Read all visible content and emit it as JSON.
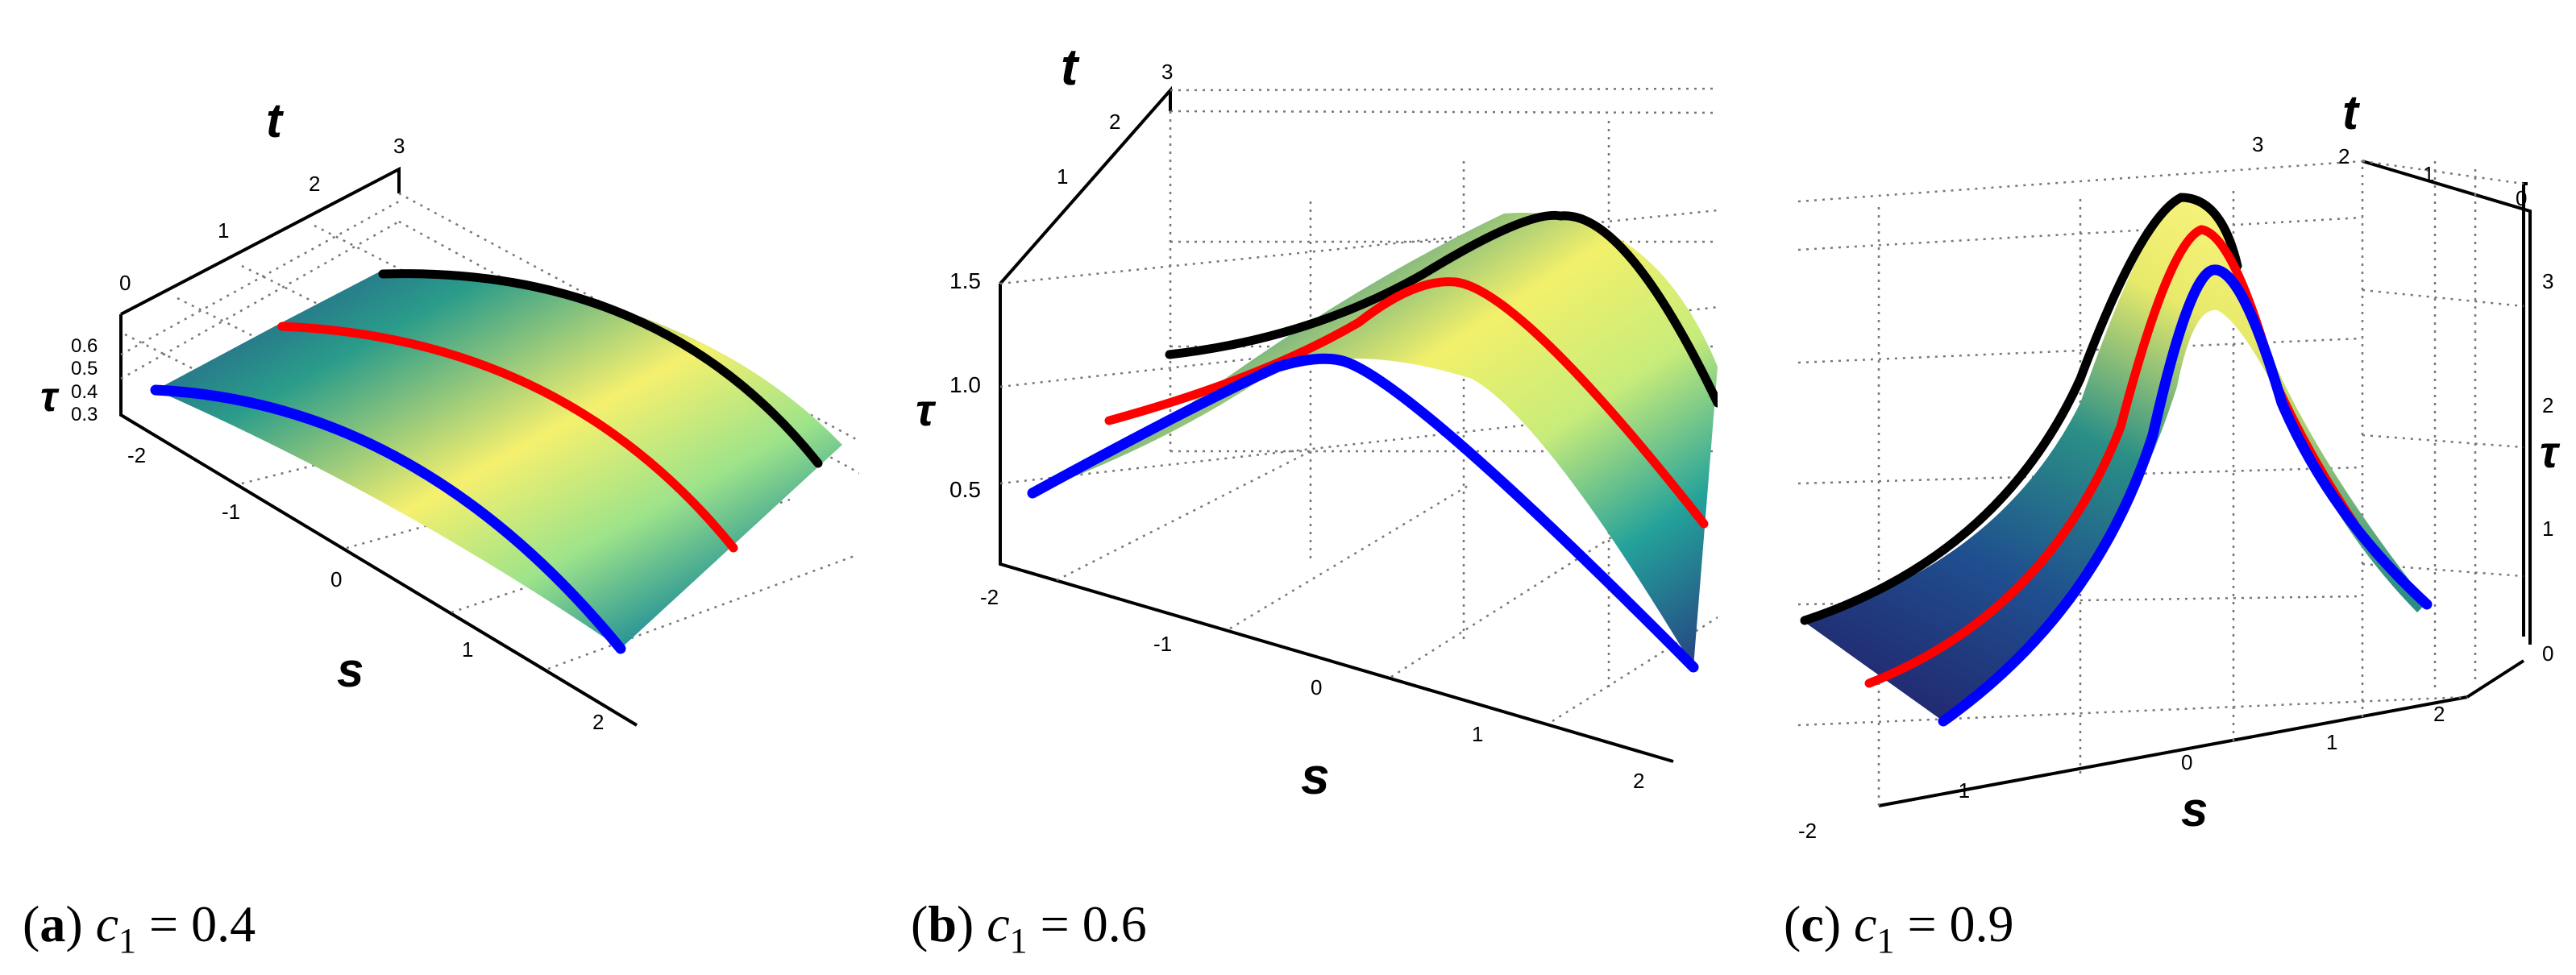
{
  "figure": {
    "panels": [
      {
        "id": "a",
        "caption": {
          "tag": "a",
          "var": "c",
          "sub": "1",
          "rel": " = ",
          "value": "0.4"
        },
        "chart_data": {
          "type": "surface3d",
          "c1": 0.4,
          "axes": {
            "x": {
              "label": "s",
              "ticks": [
                "-2",
                "-1",
                "0",
                "1",
                "2"
              ]
            },
            "y": {
              "label": "t",
              "ticks": [
                "0",
                "1",
                "2",
                "3"
              ]
            },
            "z": {
              "label": "τ",
              "ticks": [
                "0.3",
                "0.4",
                "0.5",
                "0.6"
              ]
            }
          },
          "curve_colors": [
            "#000000",
            "#ff0000",
            "#0000ff"
          ]
        }
      },
      {
        "id": "b",
        "caption": {
          "tag": "b",
          "var": "c",
          "sub": "1",
          "rel": " = ",
          "value": "0.6"
        },
        "chart_data": {
          "type": "surface3d",
          "c1": 0.6,
          "axes": {
            "x": {
              "label": "s",
              "ticks": [
                "-2",
                "-1",
                "0",
                "1",
                "2"
              ]
            },
            "y": {
              "label": "t",
              "ticks": [
                "1",
                "2",
                "3"
              ]
            },
            "z": {
              "label": "τ",
              "ticks": [
                "0.5",
                "1.0",
                "1.5"
              ]
            }
          },
          "curve_colors": [
            "#000000",
            "#ff0000",
            "#0000ff"
          ]
        }
      },
      {
        "id": "c",
        "caption": {
          "tag": "c",
          "var": "c",
          "sub": "1",
          "rel": " = ",
          "value": "0.9"
        },
        "chart_data": {
          "type": "surface3d",
          "c1": 0.9,
          "axes": {
            "x": {
              "label": "s",
              "ticks": [
                "-2",
                "-1",
                "0",
                "1",
                "2"
              ]
            },
            "y": {
              "label": "t",
              "ticks": [
                "3",
                "2",
                "1",
                "0"
              ]
            },
            "z": {
              "label": "τ",
              "ticks": [
                "0",
                "1",
                "2",
                "3"
              ]
            }
          },
          "curve_colors": [
            "#000000",
            "#ff0000",
            "#0000ff"
          ]
        }
      }
    ]
  }
}
